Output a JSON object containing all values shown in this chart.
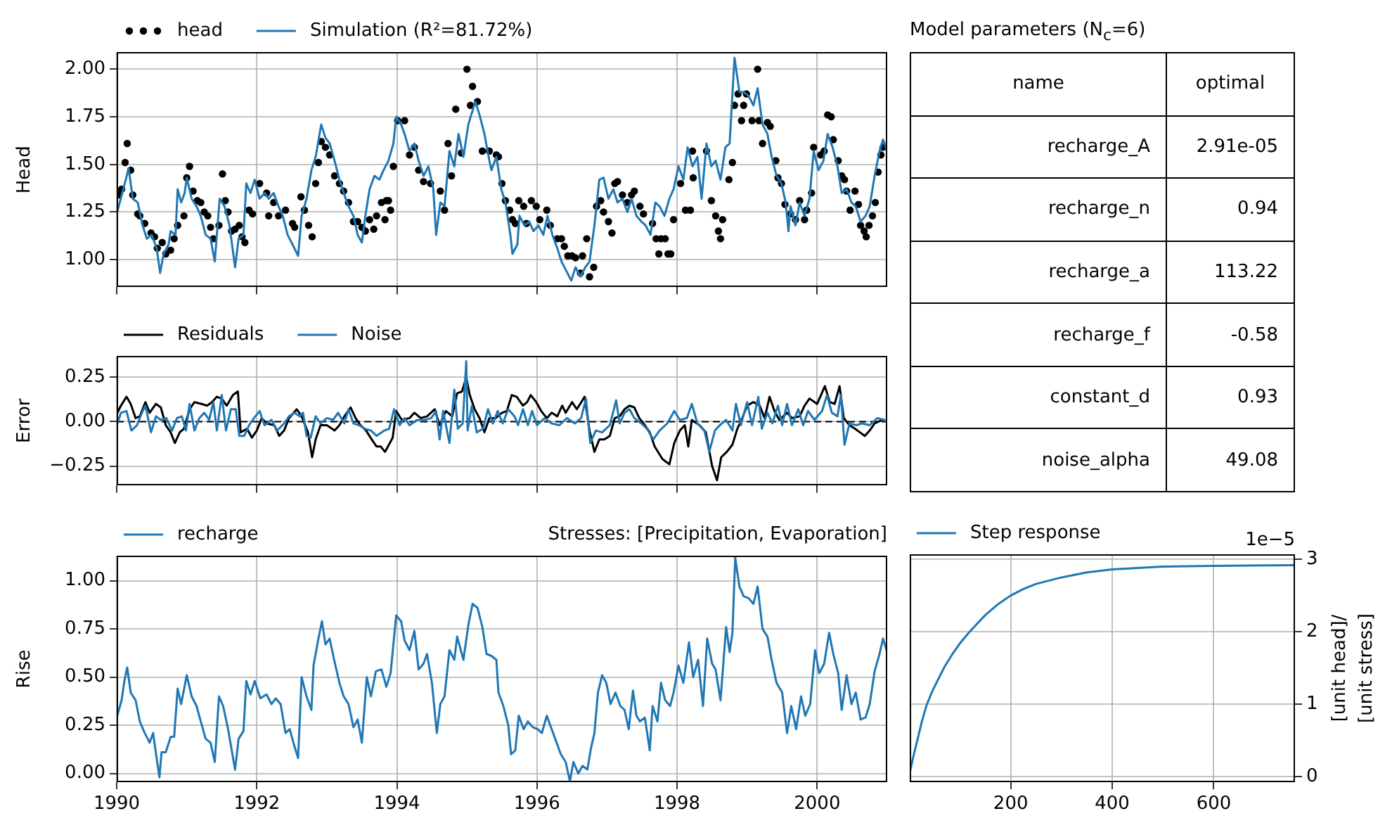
{
  "chart_data": [
    {
      "type": "line",
      "ylabel": "Head",
      "legend": "top left",
      "grid": true,
      "tick_labels": "y",
      "xlim": [
        1990,
        2001
      ],
      "xticks": [
        1990,
        1992,
        1994,
        1996,
        1998,
        2000
      ],
      "ylim": [
        0.855,
        2.09
      ],
      "yticks": [
        {
          "value": 1,
          "label": "1.00"
        },
        {
          "value": 1.25,
          "label": "1.25"
        },
        {
          "value": 1.5,
          "label": "1.50"
        },
        {
          "value": 1.75,
          "label": "1.75"
        },
        {
          "value": 2,
          "label": "2.00"
        }
      ],
      "series": [
        {
          "name": "head",
          "type": "scatter",
          "marker": "circle",
          "color": "#000000",
          "x": [
            1990.03,
            1990.07,
            1990.12,
            1990.15,
            1990.2,
            1990.23,
            1990.3,
            1990.33,
            1990.4,
            1990.49,
            1990.54,
            1990.58,
            1990.65,
            1990.7,
            1990.77,
            1990.82,
            1990.87,
            1990.96,
            1991.0,
            1991.04,
            1991.09,
            1991.15,
            1991.2,
            1991.25,
            1991.3,
            1991.34,
            1991.38,
            1991.46,
            1991.51,
            1991.55,
            1991.59,
            1991.64,
            1991.69,
            1991.75,
            1991.79,
            1991.83,
            1991.89,
            1991.94,
            1992.04,
            1992.14,
            1992.17,
            1992.24,
            1992.31,
            1992.41,
            1992.51,
            1992.54,
            1992.63,
            1992.68,
            1992.74,
            1992.79,
            1992.84,
            1992.88,
            1992.92,
            1992.98,
            1993.04,
            1993.11,
            1993.18,
            1993.24,
            1993.31,
            1993.38,
            1993.44,
            1993.5,
            1993.55,
            1993.61,
            1993.67,
            1993.71,
            1993.78,
            1993.83,
            1993.85,
            1993.88,
            1993.91,
            1993.95,
            1994.01,
            1994.11,
            1994.18,
            1994.25,
            1994.31,
            1994.38,
            1994.48,
            1994.62,
            1994.68,
            1994.73,
            1994.78,
            1994.84,
            1994.92,
            1995.0,
            1995.05,
            1995.08,
            1995.15,
            1995.22,
            1995.32,
            1995.42,
            1995.45,
            1995.5,
            1995.55,
            1995.61,
            1995.65,
            1995.69,
            1995.74,
            1995.81,
            1995.85,
            1995.92,
            1995.99,
            1996.04,
            1996.14,
            1996.19,
            1996.29,
            1996.35,
            1996.39,
            1996.44,
            1996.5,
            1996.55,
            1996.62,
            1996.65,
            1996.71,
            1996.75,
            1996.81,
            1996.85,
            1996.91,
            1996.95,
            1997.02,
            1997.07,
            1997.11,
            1997.15,
            1997.22,
            1997.29,
            1997.35,
            1997.39,
            1997.47,
            1997.52,
            1997.65,
            1997.7,
            1997.74,
            1997.77,
            1997.83,
            1997.87,
            1997.91,
            1997.95,
            1998.05,
            1998.12,
            1998.19,
            1998.22,
            1998.23,
            1998.42,
            1998.49,
            1998.55,
            1998.59,
            1998.62,
            1998.65,
            1998.74,
            1998.79,
            1998.82,
            1998.87,
            1998.92,
            1998.95,
            1998.99,
            1999.07,
            1999.15,
            1999.17,
            1999.22,
            1999.29,
            1999.33,
            1999.41,
            1999.44,
            1999.49,
            1999.54,
            1999.62,
            1999.69,
            1999.75,
            1999.82,
            1999.85,
            1999.92,
            1999.95,
            2000.05,
            2000.1,
            2000.15,
            2000.2,
            2000.23,
            2000.3,
            2000.35,
            2000.39,
            2000.42,
            2000.47,
            2000.54,
            2000.59,
            2000.62,
            2000.67,
            2000.7,
            2000.74,
            2000.79,
            2000.83,
            2000.87,
            2000.91,
            2000.94
          ],
          "values": [
            1.34,
            1.37,
            1.51,
            1.61,
            1.47,
            1.34,
            1.24,
            1.23,
            1.19,
            1.14,
            1.12,
            1.06,
            1.09,
            1.03,
            1.05,
            1.11,
            1.18,
            1.23,
            1.43,
            1.49,
            1.36,
            1.31,
            1.3,
            1.25,
            1.23,
            1.17,
            1.11,
            1.18,
            1.45,
            1.31,
            1.25,
            1.15,
            1.16,
            1.18,
            1.12,
            1.09,
            1.26,
            1.24,
            1.4,
            1.35,
            1.23,
            1.3,
            1.23,
            1.26,
            1.19,
            1.17,
            1.33,
            1.26,
            1.18,
            1.12,
            1.4,
            1.51,
            1.62,
            1.59,
            1.55,
            1.44,
            1.4,
            1.36,
            1.3,
            1.2,
            1.2,
            1.17,
            1.15,
            1.21,
            1.16,
            1.23,
            1.3,
            1.21,
            1.31,
            1.31,
            1.26,
            1.49,
            1.73,
            1.73,
            1.55,
            1.59,
            1.47,
            1.41,
            1.4,
            1.36,
            1.26,
            1.61,
            1.44,
            1.79,
            1.56,
            2.0,
            1.81,
            1.91,
            1.83,
            1.57,
            1.57,
            1.55,
            1.54,
            1.4,
            1.31,
            1.26,
            1.21,
            1.19,
            1.31,
            1.28,
            1.19,
            1.31,
            1.28,
            1.21,
            1.26,
            1.18,
            1.11,
            1.11,
            1.07,
            1.02,
            1.02,
            1.01,
            0.93,
            1.02,
            1.11,
            0.91,
            0.96,
            1.28,
            1.31,
            1.25,
            1.2,
            1.14,
            1.4,
            1.41,
            1.34,
            1.3,
            1.34,
            1.36,
            1.28,
            1.24,
            1.19,
            1.11,
            1.03,
            1.11,
            1.11,
            1.03,
            1.03,
            1.21,
            1.4,
            1.26,
            1.26,
            1.57,
            1.43,
            1.57,
            1.31,
            1.23,
            1.15,
            1.11,
            1.21,
            1.42,
            1.51,
            1.81,
            1.87,
            1.73,
            1.81,
            1.87,
            1.73,
            2.0,
            1.73,
            1.61,
            1.72,
            1.7,
            1.52,
            1.43,
            1.4,
            1.29,
            1.24,
            1.21,
            1.31,
            1.21,
            1.26,
            1.35,
            1.59,
            1.55,
            1.57,
            1.76,
            1.75,
            1.63,
            1.52,
            1.44,
            1.42,
            1.36,
            1.26,
            1.36,
            1.29,
            1.18,
            1.15,
            1.12,
            1.18,
            1.23,
            1.3,
            1.46,
            1.55,
            1.59
          ]
        },
        {
          "name": "Simulation (R²=81.72%)",
          "type": "line",
          "color": "#1f77b4",
          "x": [
            1990.0,
            1990.13,
            1990.17,
            1990.23,
            1990.3,
            1990.37,
            1990.43,
            1990.5,
            1990.57,
            1990.62,
            1990.67,
            1990.74,
            1990.77,
            1990.84,
            1990.87,
            1990.92,
            1990.97,
            1991.0,
            1991.07,
            1991.14,
            1991.2,
            1991.27,
            1991.34,
            1991.4,
            1991.47,
            1991.54,
            1991.61,
            1991.69,
            1991.74,
            1991.81,
            1991.85,
            1991.91,
            1991.97,
            1992.04,
            1992.11,
            1992.17,
            1992.24,
            1992.31,
            1992.37,
            1992.44,
            1992.51,
            1992.59,
            1992.64,
            1992.71,
            1992.78,
            1992.84,
            1992.92,
            1992.98,
            1993.04,
            1993.11,
            1993.18,
            1993.24,
            1993.31,
            1993.38,
            1993.44,
            1993.5,
            1993.55,
            1993.61,
            1993.68,
            1993.75,
            1993.81,
            1993.88,
            1993.95,
            1993.99,
            1994.06,
            1994.11,
            1994.18,
            1994.25,
            1994.31,
            1994.38,
            1994.45,
            1994.52,
            1994.56,
            1994.62,
            1994.68,
            1994.75,
            1994.82,
            1994.88,
            1994.95,
            1995.02,
            1995.12,
            1995.18,
            1995.25,
            1995.32,
            1995.35,
            1995.42,
            1995.45,
            1995.49,
            1995.55,
            1995.62,
            1995.65,
            1995.72,
            1995.75,
            1995.82,
            1995.89,
            1995.95,
            1996.02,
            1996.09,
            1996.15,
            1996.22,
            1996.29,
            1996.35,
            1996.42,
            1996.49,
            1996.55,
            1996.62,
            1996.69,
            1996.75,
            1996.82,
            1996.89,
            1996.95,
            1997.02,
            1997.09,
            1997.15,
            1997.22,
            1997.29,
            1997.35,
            1997.42,
            1997.49,
            1997.55,
            1997.62,
            1997.69,
            1997.75,
            1997.82,
            1997.89,
            1997.95,
            1998.02,
            1998.09,
            1998.15,
            1998.22,
            1998.29,
            1998.35,
            1998.42,
            1998.49,
            1998.55,
            1998.62,
            1998.69,
            1998.75,
            1998.82,
            1998.89,
            1998.95,
            1999.02,
            1999.09,
            1999.15,
            1999.22,
            1999.29,
            1999.35,
            1999.42,
            1999.49,
            1999.55,
            1999.59,
            1999.62,
            1999.69,
            1999.75,
            1999.82,
            1999.89,
            1999.95,
            2000.02,
            2000.09,
            2000.15,
            2000.22,
            2000.29,
            2000.35,
            2000.42,
            2000.49,
            2000.55,
            2000.62,
            2000.69,
            2000.75,
            2000.82,
            2000.89,
            2000.94,
            2000.99
          ],
          "values": [
            1.24,
            1.42,
            1.48,
            1.32,
            1.3,
            1.18,
            1.11,
            1.13,
            1.06,
            0.93,
            1.03,
            1.08,
            1.15,
            1.13,
            1.37,
            1.3,
            1.35,
            1.43,
            1.32,
            1.28,
            1.23,
            1.13,
            1.11,
            0.99,
            1.32,
            1.28,
            1.18,
            0.96,
            1.11,
            1.13,
            1.4,
            1.35,
            1.42,
            1.32,
            1.35,
            1.32,
            1.35,
            1.28,
            1.23,
            1.13,
            1.08,
            1.02,
            1.23,
            1.32,
            1.47,
            1.54,
            1.71,
            1.64,
            1.61,
            1.52,
            1.42,
            1.35,
            1.28,
            1.23,
            1.13,
            1.09,
            1.23,
            1.37,
            1.44,
            1.42,
            1.47,
            1.52,
            1.61,
            1.75,
            1.71,
            1.66,
            1.57,
            1.61,
            1.52,
            1.44,
            1.49,
            1.37,
            1.13,
            1.3,
            1.28,
            1.57,
            1.49,
            1.66,
            1.54,
            1.71,
            1.83,
            1.76,
            1.66,
            1.52,
            1.47,
            1.54,
            1.47,
            1.37,
            1.3,
            1.13,
            1.03,
            1.08,
            1.23,
            1.18,
            1.2,
            1.15,
            1.18,
            1.13,
            1.23,
            1.13,
            1.06,
            0.99,
            0.94,
            0.89,
            0.96,
            0.91,
            0.96,
            0.99,
            1.18,
            1.42,
            1.43,
            1.32,
            1.37,
            1.3,
            1.32,
            1.25,
            1.32,
            1.23,
            1.2,
            1.18,
            1.13,
            1.3,
            1.28,
            1.23,
            1.32,
            1.37,
            1.49,
            1.42,
            1.59,
            1.49,
            1.54,
            1.32,
            1.61,
            1.49,
            1.52,
            1.42,
            1.59,
            1.61,
            2.06,
            1.88,
            1.88,
            1.86,
            1.81,
            1.9,
            1.71,
            1.66,
            1.54,
            1.44,
            1.4,
            1.3,
            1.15,
            1.28,
            1.18,
            1.3,
            1.23,
            1.32,
            1.57,
            1.47,
            1.52,
            1.66,
            1.59,
            1.49,
            1.35,
            1.37,
            1.3,
            1.28,
            1.2,
            1.23,
            1.28,
            1.44,
            1.57,
            1.63,
            1.58
          ]
        }
      ]
    },
    {
      "type": "other",
      "title": "Model parameters (N$_{c}$=6)",
      "annotations": [
        "name",
        "optimal",
        "recharge_A",
        "2.91e-05",
        "recharge_n",
        "0.94",
        "recharge_a",
        "113.22",
        "recharge_f",
        "-0.58",
        "constant_d",
        "0.93",
        "noise_alpha",
        "49.08"
      ]
    },
    {
      "type": "line",
      "ylabel": "Error",
      "legend": "top left",
      "grid": true,
      "tick_labels": "y",
      "xlim": [
        1990,
        2001
      ],
      "xticks": [
        1990,
        1992,
        1994,
        1996,
        1998,
        2000
      ],
      "ylim": [
        -0.36,
        0.37
      ],
      "yticks": [
        {
          "value": -0.25,
          "label": "−0.25"
        },
        {
          "value": 0,
          "label": "0.00"
        },
        {
          "value": 0.25,
          "label": "0.25"
        }
      ],
      "ref_lines": [
        {
          "axis": "y",
          "value": 0,
          "color": "#000000",
          "line_style": "dashed"
        }
      ],
      "series": [
        {
          "name": "Residuals",
          "color": "#000000",
          "x": [
            1990.01,
            1990.06,
            1990.14,
            1990.2,
            1990.27,
            1990.33,
            1990.41,
            1990.47,
            1990.56,
            1990.63,
            1990.7,
            1990.77,
            1990.83,
            1990.9,
            1990.96,
            1991.04,
            1991.11,
            1991.21,
            1991.29,
            1991.36,
            1991.43,
            1991.5,
            1991.57,
            1991.66,
            1991.73,
            1991.77,
            1991.86,
            1991.93,
            1992.0,
            1992.07,
            1992.14,
            1992.25,
            1992.32,
            1992.39,
            1992.46,
            1992.57,
            1992.64,
            1992.73,
            1992.79,
            1992.84,
            1992.91,
            1993.0,
            1993.11,
            1993.18,
            1993.25,
            1993.34,
            1993.41,
            1993.48,
            1993.56,
            1993.64,
            1993.71,
            1993.77,
            1993.83,
            1993.9,
            1993.94,
            1993.99,
            1994.07,
            1994.18,
            1994.25,
            1994.34,
            1994.43,
            1994.54,
            1994.61,
            1994.7,
            1994.79,
            1994.86,
            1994.93,
            1994.99,
            1995.04,
            1995.11,
            1995.18,
            1995.25,
            1995.32,
            1995.41,
            1995.5,
            1995.57,
            1995.64,
            1995.71,
            1995.8,
            1995.86,
            1995.91,
            1995.99,
            1996.06,
            1996.14,
            1996.21,
            1996.29,
            1996.36,
            1996.41,
            1996.5,
            1996.57,
            1996.68,
            1996.75,
            1996.82,
            1996.89,
            1996.96,
            1997.04,
            1997.11,
            1997.18,
            1997.25,
            1997.32,
            1997.39,
            1997.46,
            1997.54,
            1997.61,
            1997.68,
            1997.79,
            1997.89,
            1997.96,
            1998.04,
            1998.11,
            1998.16,
            1998.21,
            1998.32,
            1998.41,
            1998.5,
            1998.57,
            1998.63,
            1998.71,
            1998.79,
            1998.86,
            1998.93,
            1999.0,
            1999.09,
            1999.18,
            1999.25,
            1999.32,
            1999.39,
            1999.46,
            1999.57,
            1999.64,
            1999.75,
            1999.82,
            1999.89,
            2000.0,
            2000.11,
            2000.18,
            2000.25,
            2000.32,
            2000.38,
            2000.46,
            2000.54,
            2000.61,
            2000.68,
            2000.75,
            2000.82,
            2000.93
          ],
          "values": [
            0.05,
            0.09,
            0.14,
            0.1,
            0.02,
            0.03,
            0.11,
            0.05,
            0.1,
            0.08,
            -0.02,
            -0.06,
            -0.12,
            -0.06,
            -0.04,
            0.07,
            0.11,
            0.1,
            0.09,
            0.11,
            0.14,
            0.13,
            0.09,
            0.15,
            0.17,
            -0.06,
            -0.04,
            -0.09,
            -0.05,
            0.02,
            -0.01,
            -0.02,
            -0.08,
            -0.05,
            0.02,
            0.07,
            0.03,
            -0.06,
            -0.2,
            -0.1,
            -0.02,
            -0.02,
            -0.05,
            -0.02,
            0.03,
            0.08,
            0.02,
            -0.02,
            -0.05,
            -0.1,
            -0.14,
            -0.14,
            -0.17,
            -0.12,
            -0.09,
            0.06,
            0.01,
            0.02,
            0.05,
            0.02,
            0.03,
            0.07,
            -0.02,
            0.06,
            0.03,
            0.16,
            0.17,
            0.25,
            0.15,
            0.07,
            0.02,
            -0.06,
            0.02,
            0.02,
            0.05,
            0.06,
            0.15,
            0.14,
            0.09,
            0.11,
            0.15,
            0.11,
            0.06,
            0.02,
            0.05,
            0.03,
            0.09,
            0.05,
            0.11,
            0.07,
            0.14,
            -0.05,
            -0.17,
            -0.1,
            -0.1,
            -0.08,
            0.02,
            0.03,
            0.07,
            0.09,
            0.08,
            0.02,
            -0.02,
            -0.06,
            -0.14,
            -0.21,
            -0.24,
            -0.12,
            -0.05,
            -0.02,
            -0.14,
            0.01,
            -0.02,
            -0.06,
            -0.25,
            -0.33,
            -0.2,
            -0.17,
            -0.13,
            -0.04,
            0.02,
            0.09,
            0.11,
            0.09,
            0.02,
            0.14,
            0.06,
            0.01,
            0.05,
            0.02,
            0.03,
            0.09,
            0.13,
            0.1,
            0.2,
            0.11,
            0.1,
            0.2,
            0.02,
            -0.02,
            -0.04,
            -0.06,
            -0.08,
            -0.05,
            -0.01,
            0.01
          ]
        },
        {
          "name": "Noise",
          "color": "#1f77b4",
          "x": [
            1990.01,
            1990.06,
            1990.14,
            1990.21,
            1990.29,
            1990.36,
            1990.41,
            1990.49,
            1990.56,
            1990.63,
            1990.71,
            1990.79,
            1990.86,
            1990.93,
            1990.99,
            1991.04,
            1991.11,
            1991.18,
            1991.25,
            1991.32,
            1991.38,
            1991.43,
            1991.5,
            1991.56,
            1991.63,
            1991.7,
            1991.75,
            1991.82,
            1991.89,
            1991.96,
            1992.04,
            1992.11,
            1992.21,
            1992.29,
            1992.39,
            1992.46,
            1992.54,
            1992.61,
            1992.66,
            1992.71,
            1992.77,
            1992.84,
            1992.91,
            1993.0,
            1993.09,
            1993.16,
            1993.25,
            1993.31,
            1993.38,
            1993.46,
            1993.54,
            1993.63,
            1993.71,
            1993.82,
            1993.89,
            1993.96,
            1994.04,
            1994.11,
            1994.18,
            1994.29,
            1994.39,
            1994.49,
            1994.56,
            1994.61,
            1994.66,
            1994.75,
            1994.82,
            1994.87,
            1994.94,
            1994.99,
            1995.01,
            1995.07,
            1995.14,
            1995.23,
            1995.3,
            1995.37,
            1995.44,
            1995.51,
            1995.59,
            1995.68,
            1995.73,
            1995.8,
            1995.87,
            1995.93,
            1996.0,
            1996.11,
            1996.21,
            1996.32,
            1996.43,
            1996.54,
            1996.63,
            1996.7,
            1996.76,
            1996.84,
            1996.93,
            1997.04,
            1997.13,
            1997.18,
            1997.25,
            1997.32,
            1997.39,
            1997.49,
            1997.57,
            1997.66,
            1997.75,
            1997.86,
            1997.96,
            1998.04,
            1998.14,
            1998.21,
            1998.29,
            1998.39,
            1998.46,
            1998.54,
            1998.61,
            1998.7,
            1998.79,
            1998.84,
            1998.91,
            1999.0,
            1999.07,
            1999.16,
            1999.21,
            1999.29,
            1999.36,
            1999.44,
            1999.5,
            1999.57,
            1999.64,
            1999.73,
            1999.8,
            1999.87,
            1999.96,
            2000.07,
            2000.14,
            2000.21,
            2000.29,
            2000.34,
            2000.39,
            2000.46,
            2000.56,
            2000.64,
            2000.75,
            2000.86,
            2000.96
          ],
          "values": [
            -0.01,
            0.05,
            0.06,
            -0.05,
            -0.02,
            0.05,
            0.09,
            -0.06,
            0.03,
            0.01,
            0.02,
            -0.05,
            0.02,
            0.03,
            -0.05,
            0.1,
            -0.05,
            0.02,
            0.05,
            0.01,
            0.11,
            -0.05,
            0.15,
            -0.05,
            0.07,
            0.07,
            -0.08,
            -0.08,
            -0.02,
            0.02,
            0.06,
            -0.02,
            0.01,
            -0.05,
            -0.01,
            0.03,
            0.05,
            0.03,
            0.05,
            -0.08,
            -0.09,
            0.03,
            -0.01,
            0.02,
            0.01,
            0.05,
            -0.01,
            0.07,
            -0.01,
            -0.02,
            -0.04,
            -0.05,
            -0.08,
            -0.05,
            -0.04,
            0.07,
            -0.02,
            0.02,
            -0.02,
            0.01,
            0.01,
            0.02,
            0.06,
            -0.1,
            0.06,
            -0.12,
            0.18,
            -0.04,
            -0.01,
            0.34,
            -0.05,
            0.09,
            -0.06,
            -0.04,
            0.07,
            -0.01,
            0.06,
            -0.01,
            0.07,
            0.03,
            -0.02,
            0.07,
            -0.02,
            0.06,
            -0.02,
            0.02,
            -0.01,
            -0.02,
            0.02,
            -0.01,
            0.02,
            0.13,
            -0.12,
            -0.05,
            -0.06,
            -0.02,
            0.12,
            -0.01,
            0.05,
            0.07,
            0.02,
            -0.01,
            -0.04,
            -0.1,
            -0.05,
            -0.01,
            0.06,
            0.01,
            0.02,
            0.1,
            -0.01,
            -0.05,
            -0.17,
            -0.05,
            -0.02,
            0.01,
            -0.05,
            0.1,
            -0.02,
            0.11,
            -0.02,
            0.14,
            -0.04,
            0.05,
            -0.01,
            0.09,
            -0.02,
            0.1,
            -0.02,
            0.07,
            -0.02,
            0.06,
            0.01,
            0.06,
            0.15,
            0.05,
            0.03,
            0.15,
            -0.13,
            -0.01,
            -0.02,
            -0.01,
            -0.02,
            0.02,
            0.01
          ]
        }
      ]
    },
    {
      "type": "line",
      "title": "Stresses: [Precipitation, Evaporation]",
      "ylabel": "Rise",
      "legend": "top left",
      "grid": true,
      "xlim": [
        1990,
        2001
      ],
      "xticks": [
        1990,
        1992,
        1994,
        1996,
        1998,
        2000
      ],
      "ylim": [
        -0.045,
        1.13
      ],
      "yticks": [
        {
          "value": 0,
          "label": "0.00"
        },
        {
          "value": 0.25,
          "label": "0.25"
        },
        {
          "value": 0.5,
          "label": "0.50"
        },
        {
          "value": 0.75,
          "label": "0.75"
        },
        {
          "value": 1,
          "label": "1.00"
        }
      ],
      "series": [
        {
          "name": "recharge",
          "color": "#1f77b4",
          "x": [
            1990.0,
            1990.07,
            1990.11,
            1990.15,
            1990.2,
            1990.27,
            1990.33,
            1990.4,
            1990.47,
            1990.52,
            1990.57,
            1990.61,
            1990.64,
            1990.7,
            1990.77,
            1990.82,
            1990.87,
            1990.92,
            1991.0,
            1991.07,
            1991.14,
            1991.2,
            1991.27,
            1991.34,
            1991.4,
            1991.46,
            1991.52,
            1991.59,
            1991.69,
            1991.74,
            1991.81,
            1991.85,
            1991.91,
            1991.97,
            1992.05,
            1992.14,
            1992.21,
            1992.27,
            1992.34,
            1992.41,
            1992.47,
            1992.53,
            1992.59,
            1992.64,
            1992.71,
            1992.78,
            1992.81,
            1992.88,
            1992.93,
            1992.98,
            1993.04,
            1993.11,
            1993.18,
            1993.24,
            1993.31,
            1993.38,
            1993.44,
            1993.5,
            1993.57,
            1993.63,
            1993.7,
            1993.78,
            1993.85,
            1993.91,
            1993.99,
            1994.06,
            1994.11,
            1994.18,
            1994.25,
            1994.31,
            1994.38,
            1994.43,
            1994.5,
            1994.57,
            1994.62,
            1994.68,
            1994.75,
            1994.82,
            1994.86,
            1994.95,
            1995.02,
            1995.08,
            1995.15,
            1995.22,
            1995.28,
            1995.35,
            1995.42,
            1995.45,
            1995.52,
            1995.59,
            1995.63,
            1995.69,
            1995.74,
            1995.81,
            1995.87,
            1995.94,
            1996.01,
            1996.07,
            1996.14,
            1996.21,
            1996.27,
            1996.34,
            1996.41,
            1996.47,
            1996.52,
            1996.59,
            1996.65,
            1996.72,
            1996.77,
            1996.82,
            1996.87,
            1996.93,
            1996.99,
            1997.05,
            1997.12,
            1997.19,
            1997.25,
            1997.31,
            1997.37,
            1997.42,
            1997.47,
            1997.54,
            1997.61,
            1997.65,
            1997.72,
            1997.77,
            1997.83,
            1997.9,
            1997.95,
            1998.02,
            1998.09,
            1998.17,
            1998.23,
            1998.3,
            1998.37,
            1998.43,
            1998.5,
            1998.55,
            1998.62,
            1998.7,
            1998.75,
            1998.79,
            1998.83,
            1998.89,
            1998.95,
            1999.02,
            1999.09,
            1999.15,
            1999.22,
            1999.29,
            1999.35,
            1999.42,
            1999.5,
            1999.57,
            1999.63,
            1999.7,
            1999.77,
            1999.83,
            1999.9,
            1999.97,
            2000.03,
            2000.1,
            2000.17,
            2000.23,
            2000.3,
            2000.35,
            2000.42,
            2000.49,
            2000.55,
            2000.62,
            2000.69,
            2000.75,
            2000.82,
            2000.89,
            2000.94,
            2000.99
          ],
          "values": [
            0.29,
            0.38,
            0.48,
            0.55,
            0.42,
            0.38,
            0.27,
            0.21,
            0.16,
            0.21,
            0.08,
            -0.02,
            0.11,
            0.11,
            0.19,
            0.19,
            0.44,
            0.36,
            0.51,
            0.4,
            0.35,
            0.27,
            0.18,
            0.16,
            0.06,
            0.4,
            0.35,
            0.23,
            0.02,
            0.18,
            0.22,
            0.48,
            0.41,
            0.48,
            0.39,
            0.41,
            0.36,
            0.39,
            0.36,
            0.21,
            0.23,
            0.15,
            0.08,
            0.5,
            0.4,
            0.33,
            0.56,
            0.7,
            0.79,
            0.67,
            0.7,
            0.58,
            0.47,
            0.4,
            0.36,
            0.24,
            0.28,
            0.16,
            0.5,
            0.4,
            0.53,
            0.54,
            0.45,
            0.52,
            0.82,
            0.79,
            0.69,
            0.64,
            0.74,
            0.54,
            0.57,
            0.62,
            0.47,
            0.21,
            0.36,
            0.4,
            0.64,
            0.59,
            0.71,
            0.59,
            0.77,
            0.88,
            0.86,
            0.76,
            0.62,
            0.61,
            0.59,
            0.42,
            0.35,
            0.25,
            0.1,
            0.12,
            0.3,
            0.23,
            0.27,
            0.24,
            0.23,
            0.21,
            0.3,
            0.23,
            0.17,
            0.1,
            0.06,
            -0.04,
            0.06,
            0.0,
            0.04,
            0.02,
            0.13,
            0.21,
            0.42,
            0.51,
            0.47,
            0.36,
            0.42,
            0.35,
            0.33,
            0.23,
            0.43,
            0.3,
            0.27,
            0.29,
            0.12,
            0.35,
            0.27,
            0.47,
            0.38,
            0.35,
            0.42,
            0.56,
            0.47,
            0.68,
            0.5,
            0.59,
            0.35,
            0.7,
            0.57,
            0.54,
            0.38,
            0.76,
            0.63,
            0.73,
            1.12,
            0.97,
            0.92,
            0.91,
            0.88,
            0.97,
            0.75,
            0.71,
            0.59,
            0.47,
            0.42,
            0.21,
            0.35,
            0.23,
            0.4,
            0.3,
            0.36,
            0.64,
            0.52,
            0.57,
            0.73,
            0.62,
            0.52,
            0.33,
            0.51,
            0.36,
            0.42,
            0.28,
            0.29,
            0.36,
            0.53,
            0.62,
            0.7,
            0.64
          ]
        }
      ]
    },
    {
      "type": "line",
      "ylabel": "[unit head]/\n[unit stress]",
      "legend": "top left",
      "grid": true,
      "annotations": [
        "1e−5"
      ],
      "xlim": [
        1,
        760
      ],
      "xticks": [
        200,
        400,
        600
      ],
      "ylim": [
        -0.08,
        3.07
      ],
      "yticks": [
        0,
        1,
        2,
        3
      ],
      "series": [
        {
          "name": "Step response",
          "color": "#1f77b4",
          "x": [
            1,
            8,
            16,
            25,
            34,
            45,
            57,
            70,
            85,
            100,
            118,
            135,
            150,
            175,
            200,
            225,
            250,
            300,
            350,
            400,
            450,
            500,
            600,
            760
          ],
          "values": [
            0.05,
            0.27,
            0.5,
            0.76,
            0.98,
            1.17,
            1.34,
            1.52,
            1.69,
            1.84,
            1.99,
            2.12,
            2.23,
            2.38,
            2.5,
            2.59,
            2.66,
            2.75,
            2.82,
            2.86,
            2.88,
            2.9,
            2.91,
            2.92
          ]
        }
      ]
    }
  ]
}
